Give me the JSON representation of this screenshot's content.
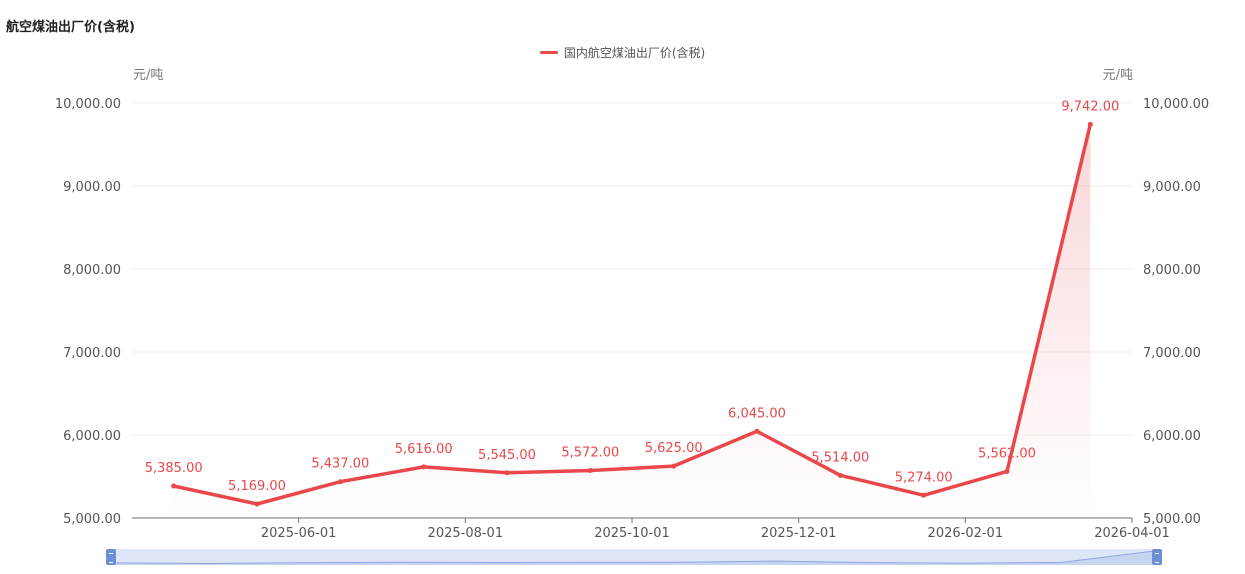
{
  "chart_data": {
    "type": "line",
    "title": "航空煤油出厂价(含税)",
    "legend_label": "国内航空煤油出厂价(含税)",
    "legend_position": "top-center",
    "unit_left": "元/吨",
    "unit_right": "元/吨",
    "x": [
      "2025-05-01",
      "2025-06-01",
      "2025-07-01",
      "2025-08-01",
      "2025-09-01",
      "2025-10-01",
      "2025-11-01",
      "2025-12-01",
      "2026-01-01",
      "2026-02-01",
      "2026-03-01",
      "2026-04-01"
    ],
    "x_tick_labels": [
      "2025-06-01",
      "2025-08-01",
      "2025-10-01",
      "2025-12-01",
      "2026-02-01",
      "2026-04-01"
    ],
    "series": [
      {
        "name": "国内航空煤油出厂价(含税)",
        "values": [
          5385,
          5169,
          5437,
          5616,
          5545,
          5572,
          5625,
          6045,
          5514,
          5274,
          5562,
          9742
        ],
        "labels": [
          "5,385.00",
          "5,169.00",
          "5,437.00",
          "5,616.00",
          "5,545.00",
          "5,572.00",
          "5,625.00",
          "6,045.00",
          "5,514.00",
          "5,274.00",
          "5,562.00",
          "9,742.00"
        ]
      }
    ],
    "ylim": [
      5000,
      10000
    ],
    "y_ticks": [
      "5,000.00",
      "6,000.00",
      "7,000.00",
      "8,000.00",
      "9,000.00",
      "10,000.00"
    ],
    "grid": true,
    "area_gradient": true,
    "color": "#e8484b",
    "datazoom": true
  }
}
